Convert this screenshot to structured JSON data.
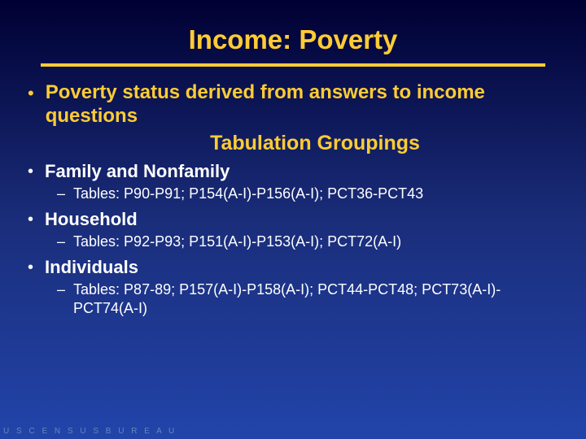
{
  "colors": {
    "accent": "#ffcc33",
    "text_white": "#ffffff",
    "bg_gradient_top": "#000033",
    "bg_gradient_mid": "#1a2d7a",
    "bg_gradient_bottom": "#2244aa",
    "footer_color": "#6688bb"
  },
  "typography": {
    "title_fontsize": 33,
    "bullet_fontsize": 24,
    "subheading_fontsize": 25,
    "section_fontsize": 22,
    "subitem_fontsize": 18,
    "footer_fontsize": 10
  },
  "slide": {
    "title": "Income: Poverty",
    "intro_bullet": "Poverty status derived from answers to income questions",
    "subheading": "Tabulation Groupings",
    "sections": [
      {
        "label": "Family and Nonfamily",
        "tables": "Tables: P90-P91; P154(A-I)-P156(A-I); PCT36-PCT43"
      },
      {
        "label": "Household",
        "tables": "Tables: P92-P93; P151(A-I)-P153(A-I); PCT72(A-I)"
      },
      {
        "label": "Individuals",
        "tables": "Tables: P87-89; P157(A-I)-P158(A-I); PCT44-PCT48; PCT73(A-I)-PCT74(A-I)"
      }
    ]
  },
  "footer": "U S C E N S U S B U R E A U"
}
